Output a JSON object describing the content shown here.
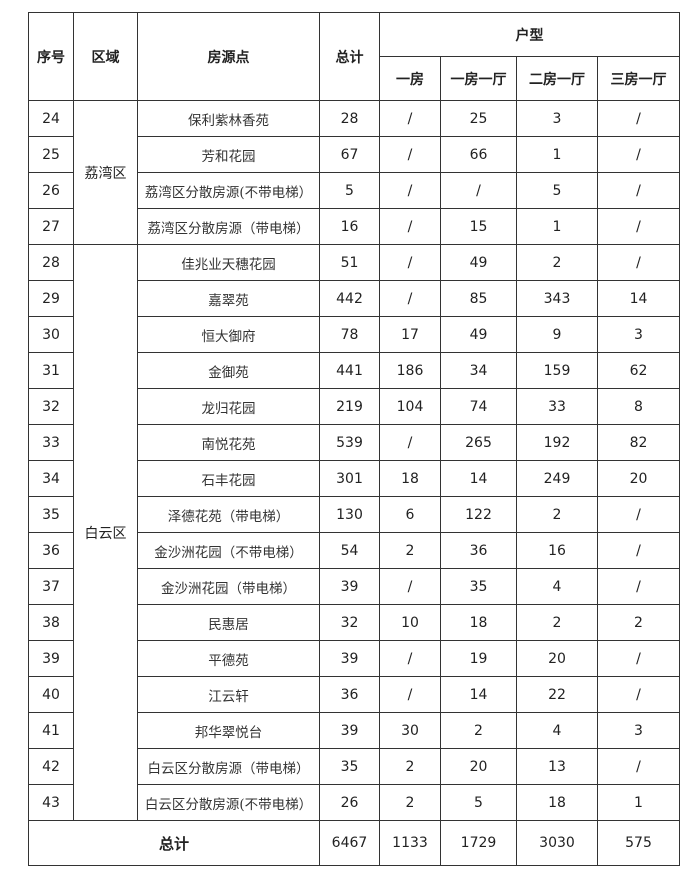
{
  "headers": {
    "index": "序号",
    "region": "区域",
    "source": "房源点",
    "total": "总计",
    "unit_type": "户型",
    "types": [
      "一房",
      "一房一厅",
      "二房一厅",
      "三房一厅"
    ]
  },
  "regions": [
    {
      "name": "荔湾区",
      "rows": [
        {
          "no": "24",
          "name": "保利紫林香苑",
          "total": "28",
          "t1": "/",
          "t2": "25",
          "t3": "3",
          "t4": "/"
        },
        {
          "no": "25",
          "name": "芳和花园",
          "total": "67",
          "t1": "/",
          "t2": "66",
          "t3": "1",
          "t4": "/"
        },
        {
          "no": "26",
          "name": "荔湾区分散房源(不带电梯）",
          "total": "5",
          "t1": "/",
          "t2": "/",
          "t3": "5",
          "t4": "/"
        },
        {
          "no": "27",
          "name": "荔湾区分散房源（带电梯）",
          "total": "16",
          "t1": "/",
          "t2": "15",
          "t3": "1",
          "t4": "/"
        }
      ]
    },
    {
      "name": "白云区",
      "rows": [
        {
          "no": "28",
          "name": "佳兆业天穗花园",
          "total": "51",
          "t1": "/",
          "t2": "49",
          "t3": "2",
          "t4": "/"
        },
        {
          "no": "29",
          "name": "嘉翠苑",
          "total": "442",
          "t1": "/",
          "t2": "85",
          "t3": "343",
          "t4": "14"
        },
        {
          "no": "30",
          "name": "恒大御府",
          "total": "78",
          "t1": "17",
          "t2": "49",
          "t3": "9",
          "t4": "3"
        },
        {
          "no": "31",
          "name": "金御苑",
          "total": "441",
          "t1": "186",
          "t2": "34",
          "t3": "159",
          "t4": "62"
        },
        {
          "no": "32",
          "name": "龙归花园",
          "total": "219",
          "t1": "104",
          "t2": "74",
          "t3": "33",
          "t4": "8"
        },
        {
          "no": "33",
          "name": "南悦花苑",
          "total": "539",
          "t1": "/",
          "t2": "265",
          "t3": "192",
          "t4": "82"
        },
        {
          "no": "34",
          "name": "石丰花园",
          "total": "301",
          "t1": "18",
          "t2": "14",
          "t3": "249",
          "t4": "20"
        },
        {
          "no": "35",
          "name": "泽德花苑（带电梯）",
          "total": "130",
          "t1": "6",
          "t2": "122",
          "t3": "2",
          "t4": "/"
        },
        {
          "no": "36",
          "name": "金沙洲花园（不带电梯）",
          "total": "54",
          "t1": "2",
          "t2": "36",
          "t3": "16",
          "t4": "/"
        },
        {
          "no": "37",
          "name": "金沙洲花园（带电梯）",
          "total": "39",
          "t1": "/",
          "t2": "35",
          "t3": "4",
          "t4": "/"
        },
        {
          "no": "38",
          "name": "民惠居",
          "total": "32",
          "t1": "10",
          "t2": "18",
          "t3": "2",
          "t4": "2"
        },
        {
          "no": "39",
          "name": "平德苑",
          "total": "39",
          "t1": "/",
          "t2": "19",
          "t3": "20",
          "t4": "/"
        },
        {
          "no": "40",
          "name": "江云轩",
          "total": "36",
          "t1": "/",
          "t2": "14",
          "t3": "22",
          "t4": "/"
        },
        {
          "no": "41",
          "name": "邦华翠悦台",
          "total": "39",
          "t1": "30",
          "t2": "2",
          "t3": "4",
          "t4": "3"
        },
        {
          "no": "42",
          "name": "白云区分散房源（带电梯）",
          "total": "35",
          "t1": "2",
          "t2": "20",
          "t3": "13",
          "t4": "/"
        },
        {
          "no": "43",
          "name": "白云区分散房源(不带电梯）",
          "total": "26",
          "t1": "2",
          "t2": "5",
          "t3": "18",
          "t4": "1"
        }
      ]
    }
  ],
  "summary": {
    "label": "总计",
    "total": "6467",
    "t1": "1133",
    "t2": "1729",
    "t3": "3030",
    "t4": "575"
  }
}
